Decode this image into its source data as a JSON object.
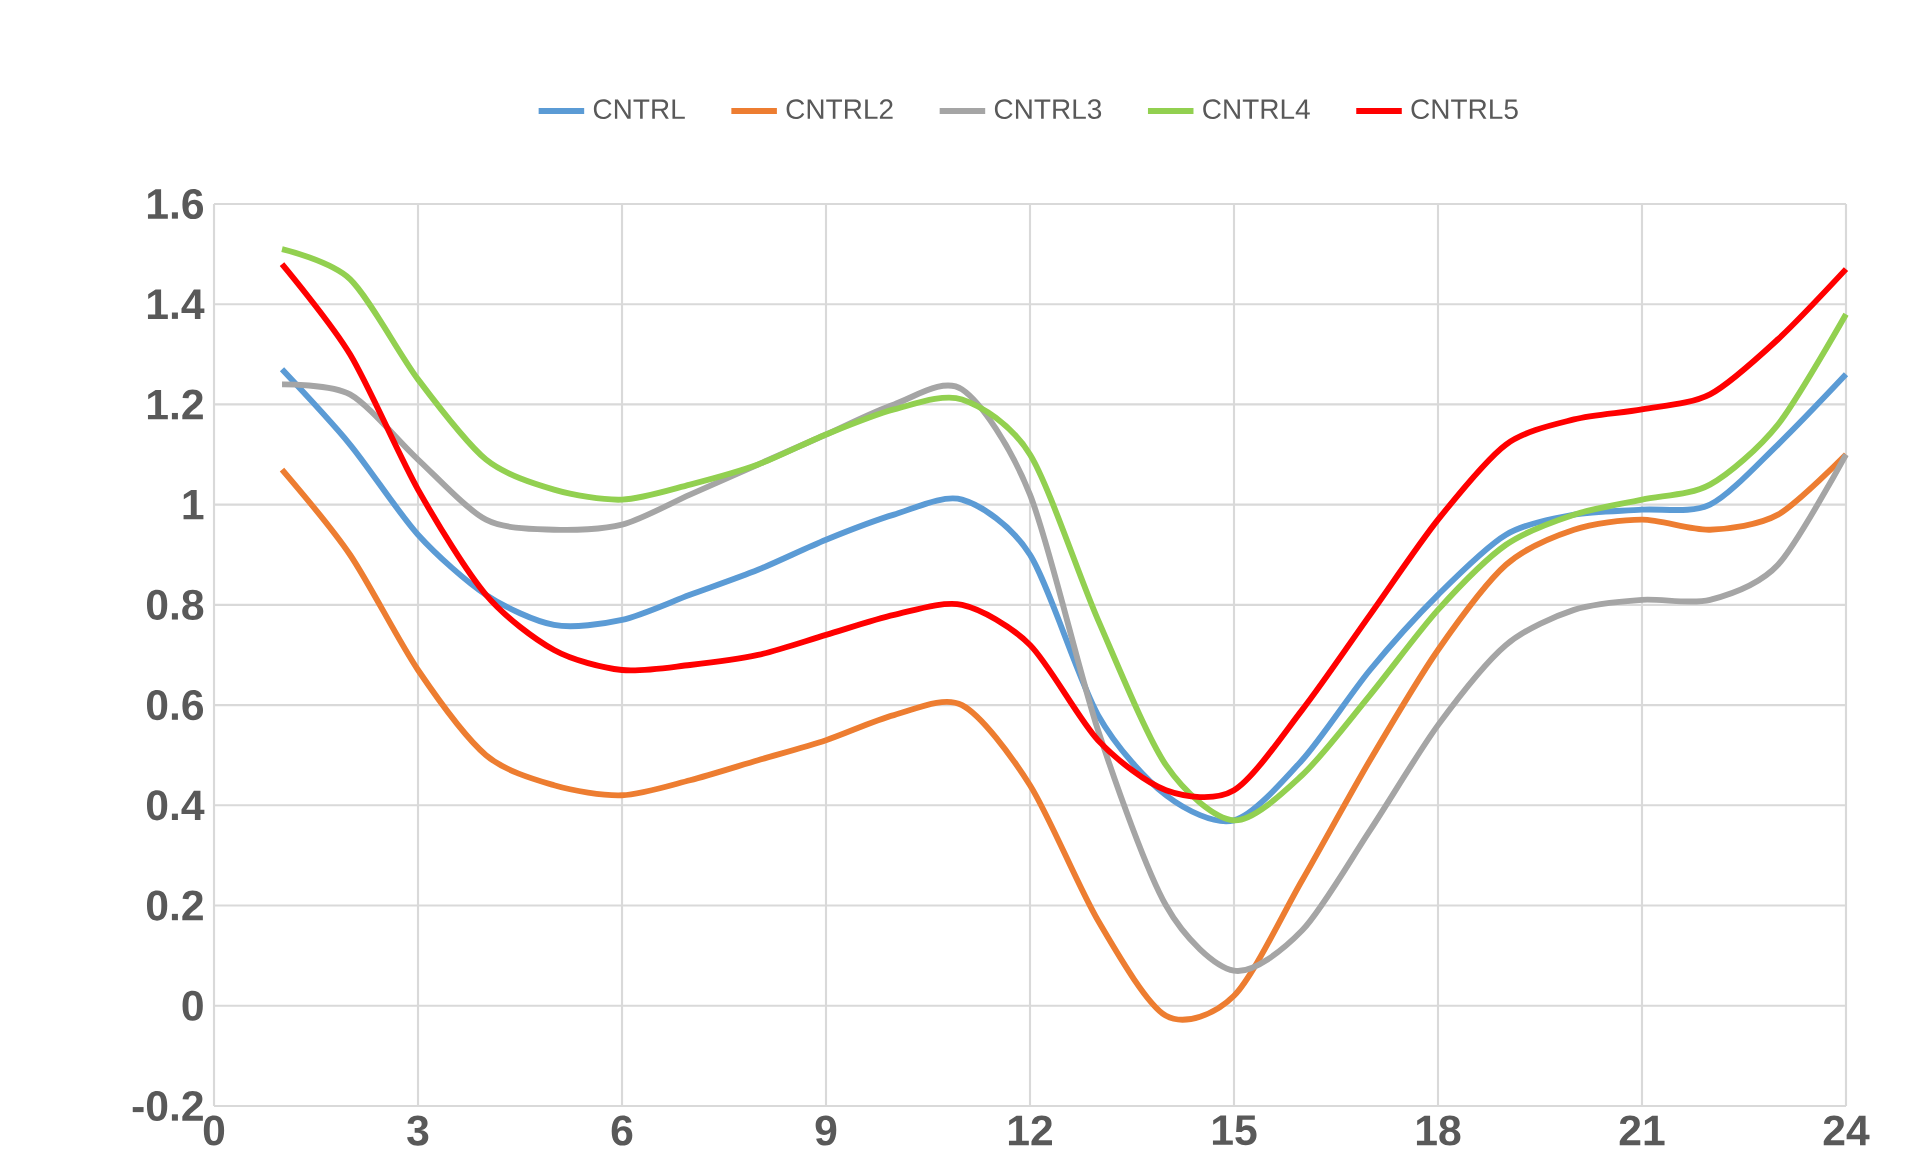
{
  "chart_data": {
    "type": "line",
    "x": [
      1,
      2,
      3,
      4,
      5,
      6,
      7,
      8,
      9,
      10,
      11,
      12,
      13,
      14,
      15,
      16,
      17,
      18,
      19,
      20,
      21,
      22,
      23,
      24
    ],
    "xlim": [
      0,
      24
    ],
    "xticks": [
      0,
      3,
      6,
      9,
      12,
      15,
      18,
      21,
      24
    ],
    "ylim": [
      -0.2,
      1.6
    ],
    "yticks": [
      -0.2,
      0,
      0.2,
      0.4,
      0.6,
      0.8,
      1,
      1.2,
      1.4,
      1.6
    ],
    "grid": true,
    "legend": "top",
    "series": [
      {
        "name": "CNTRL",
        "color": "#5b9bd5",
        "values": [
          1.27,
          1.12,
          0.94,
          0.82,
          0.76,
          0.77,
          0.82,
          0.87,
          0.93,
          0.98,
          1.01,
          0.9,
          0.58,
          0.42,
          0.37,
          0.49,
          0.67,
          0.82,
          0.94,
          0.98,
          0.99,
          1.0,
          1.12,
          1.26
        ]
      },
      {
        "name": "CNTRL2",
        "color": "#ed7d31",
        "values": [
          1.07,
          0.9,
          0.67,
          0.5,
          0.44,
          0.42,
          0.45,
          0.49,
          0.53,
          0.58,
          0.6,
          0.44,
          0.17,
          -0.02,
          0.02,
          0.25,
          0.49,
          0.71,
          0.88,
          0.95,
          0.97,
          0.95,
          0.98,
          1.1
        ]
      },
      {
        "name": "CNTRL3",
        "color": "#a5a5a5",
        "values": [
          1.24,
          1.22,
          1.09,
          0.97,
          0.95,
          0.96,
          1.02,
          1.08,
          1.14,
          1.2,
          1.23,
          1.02,
          0.55,
          0.2,
          0.07,
          0.15,
          0.35,
          0.56,
          0.72,
          0.79,
          0.81,
          0.81,
          0.88,
          1.1
        ]
      },
      {
        "name": "CNTRL4",
        "color": "#92d050",
        "values": [
          1.51,
          1.45,
          1.25,
          1.09,
          1.03,
          1.01,
          1.04,
          1.08,
          1.14,
          1.19,
          1.21,
          1.1,
          0.77,
          0.48,
          0.37,
          0.46,
          0.62,
          0.79,
          0.92,
          0.98,
          1.01,
          1.04,
          1.16,
          1.38
        ]
      },
      {
        "name": "CNTRL5",
        "color": "#ff0000",
        "values": [
          1.48,
          1.3,
          1.03,
          0.82,
          0.71,
          0.67,
          0.68,
          0.7,
          0.74,
          0.78,
          0.8,
          0.72,
          0.53,
          0.43,
          0.43,
          0.59,
          0.78,
          0.97,
          1.12,
          1.17,
          1.19,
          1.22,
          1.33,
          1.47
        ]
      }
    ]
  }
}
